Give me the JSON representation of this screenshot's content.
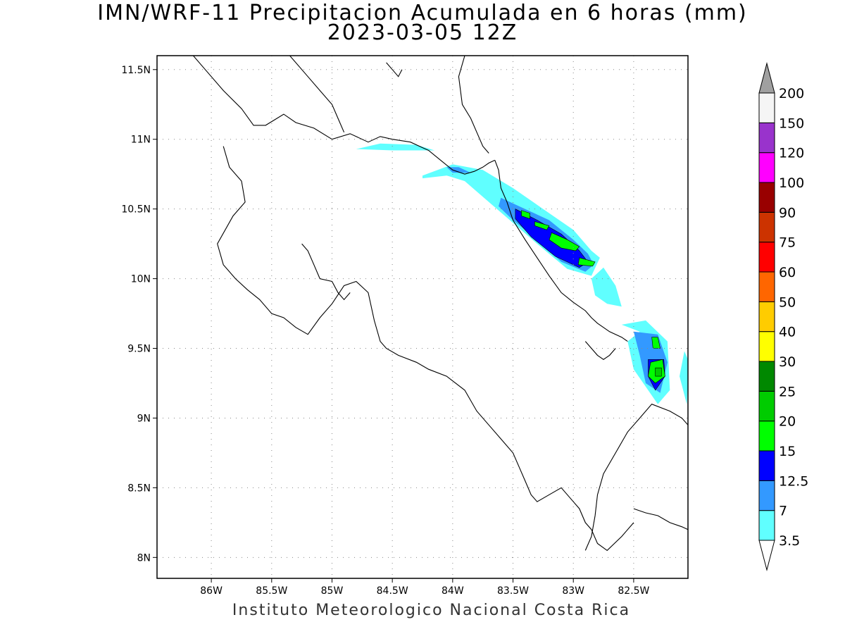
{
  "title_line1": "IMN/WRF-11 Precipitacion Acumulada en 6 horas (mm)",
  "title_line2": "2023-03-05 12Z",
  "footer": "Instituto Meteorologico Nacional Costa Rica",
  "map": {
    "lon_range": [
      -86.45,
      -82.05
    ],
    "lat_range": [
      7.85,
      11.6
    ],
    "lon_ticks": [
      {
        "value": -86,
        "label": "86W"
      },
      {
        "value": -85.5,
        "label": "85.5W"
      },
      {
        "value": -85,
        "label": "85W"
      },
      {
        "value": -84.5,
        "label": "84.5W"
      },
      {
        "value": -84,
        "label": "84W"
      },
      {
        "value": -83.5,
        "label": "83.5W"
      },
      {
        "value": -83,
        "label": "83W"
      },
      {
        "value": -82.5,
        "label": "82.5W"
      }
    ],
    "lat_ticks": [
      {
        "value": 11.5,
        "label": "11.5N"
      },
      {
        "value": 11,
        "label": "11N"
      },
      {
        "value": 10.5,
        "label": "10.5N"
      },
      {
        "value": 10,
        "label": "10N"
      },
      {
        "value": 9.5,
        "label": "9.5N"
      },
      {
        "value": 9,
        "label": "9N"
      },
      {
        "value": 8.5,
        "label": "8.5N"
      },
      {
        "value": 8,
        "label": "8N"
      }
    ],
    "gridlines": "dotted"
  },
  "colorbar": {
    "levels": [
      "3.5",
      "7",
      "12.5",
      "15",
      "20",
      "25",
      "30",
      "40",
      "50",
      "60",
      "75",
      "90",
      "100",
      "120",
      "150",
      "200"
    ],
    "colors": [
      "#60ffff",
      "#3399ff",
      "#0000ff",
      "#00ff00",
      "#00cc00",
      "#008800",
      "#ffff00",
      "#ffcc00",
      "#ff6600",
      "#ff0000",
      "#cc3300",
      "#990000",
      "#ff00ff",
      "#9933cc",
      "#f5f5f5"
    ],
    "below_color": "#ffffff",
    "above_color": "#a0a0a0"
  },
  "precip_bands": [
    {
      "level": "3.5",
      "color": "#60ffff",
      "lon": [
        -84.8,
        -84.6,
        -84.3,
        -84.15,
        -84.5
      ],
      "lat": [
        10.93,
        10.97,
        10.96,
        10.92,
        10.92
      ]
    },
    {
      "level": "3.5",
      "color": "#60ffff",
      "lon": [
        -84.25,
        -84.0,
        -83.75,
        -83.5,
        -83.25,
        -83.0,
        -82.85,
        -82.78,
        -82.85,
        -83.05,
        -83.3,
        -83.5,
        -83.7,
        -83.9,
        -84.05,
        -84.25
      ],
      "lat": [
        10.74,
        10.82,
        10.78,
        10.65,
        10.5,
        10.35,
        10.2,
        10.15,
        10.02,
        10.07,
        10.25,
        10.4,
        10.55,
        10.7,
        10.74,
        10.72
      ]
    },
    {
      "level": "3.5",
      "color": "#60ffff",
      "lon": [
        -82.85,
        -82.75,
        -82.65,
        -82.6,
        -82.72,
        -82.82
      ],
      "lat": [
        10.0,
        10.08,
        9.95,
        9.8,
        9.82,
        9.88
      ]
    },
    {
      "level": "3.5",
      "color": "#60ffff",
      "lon": [
        -82.6,
        -82.4,
        -82.22,
        -82.2,
        -82.3,
        -82.5,
        -82.55,
        -82.45
      ],
      "lat": [
        9.67,
        9.7,
        9.55,
        9.2,
        9.1,
        9.35,
        9.55,
        9.62
      ]
    },
    {
      "level": "3.5",
      "color": "#60ffff",
      "lon": [
        -82.08,
        -82.04,
        -82.06,
        -82.12
      ],
      "lat": [
        9.48,
        9.4,
        9.1,
        9.3
      ]
    },
    {
      "level": "7",
      "color": "#3399ff",
      "lon": [
        -84.05,
        -83.95,
        -83.85,
        -84.0
      ],
      "lat": [
        10.8,
        10.8,
        10.76,
        10.76
      ]
    },
    {
      "level": "7",
      "color": "#3399ff",
      "lon": [
        -83.6,
        -83.45,
        -83.2,
        -83.0,
        -82.88,
        -82.83,
        -82.9,
        -83.1,
        -83.3,
        -83.5,
        -83.62
      ],
      "lat": [
        10.58,
        10.52,
        10.42,
        10.28,
        10.18,
        10.1,
        10.05,
        10.12,
        10.28,
        10.42,
        10.52
      ]
    },
    {
      "level": "7",
      "color": "#3399ff",
      "lon": [
        -82.5,
        -82.3,
        -82.22,
        -82.28,
        -82.4,
        -82.45
      ],
      "lat": [
        9.62,
        9.6,
        9.4,
        9.18,
        9.25,
        9.45
      ]
    },
    {
      "level": "12.5",
      "color": "#0000ff",
      "lon": [
        -83.48,
        -83.3,
        -83.1,
        -82.95,
        -82.88,
        -82.95,
        -83.15,
        -83.35,
        -83.48
      ],
      "lat": [
        10.5,
        10.42,
        10.32,
        10.2,
        10.12,
        10.08,
        10.16,
        10.3,
        10.43
      ]
    },
    {
      "level": "12.5",
      "color": "#0000ff",
      "lon": [
        -82.38,
        -82.25,
        -82.24,
        -82.32,
        -82.38
      ],
      "lat": [
        9.42,
        9.42,
        9.3,
        9.2,
        9.3
      ]
    },
    {
      "level": "15",
      "color": "#00ff00",
      "lon": [
        -83.43,
        -83.36,
        -83.36,
        -83.43
      ],
      "lat": [
        10.49,
        10.47,
        10.43,
        10.45
      ]
    },
    {
      "level": "15",
      "color": "#00ff00",
      "lon": [
        -83.32,
        -83.2,
        -83.22,
        -83.32
      ],
      "lat": [
        10.41,
        10.38,
        10.35,
        10.38
      ]
    },
    {
      "level": "15",
      "color": "#00ff00",
      "lon": [
        -83.18,
        -83.05,
        -82.95,
        -82.98,
        -83.1,
        -83.2
      ],
      "lat": [
        10.33,
        10.28,
        10.23,
        10.2,
        10.22,
        10.28
      ]
    },
    {
      "level": "15",
      "color": "#00ff00",
      "lon": [
        -82.95,
        -82.82,
        -82.84,
        -82.96
      ],
      "lat": [
        10.15,
        10.12,
        10.09,
        10.1
      ]
    },
    {
      "level": "15",
      "color": "#00ff00",
      "lon": [
        -82.35,
        -82.3,
        -82.28,
        -82.34
      ],
      "lat": [
        9.58,
        9.58,
        9.5,
        9.5
      ]
    },
    {
      "level": "15",
      "color": "#00ff00",
      "lon": [
        -82.36,
        -82.26,
        -82.24,
        -82.32,
        -82.38
      ],
      "lat": [
        9.4,
        9.42,
        9.3,
        9.25,
        9.3
      ]
    },
    {
      "level": "20",
      "color": "#00cc00",
      "lon": [
        -82.32,
        -82.27,
        -82.27,
        -82.32
      ],
      "lat": [
        9.36,
        9.36,
        9.3,
        9.3
      ]
    }
  ],
  "coastlines": [
    {
      "lon": [
        -86.15,
        -86.05,
        -85.9,
        -85.75,
        -85.65,
        -85.55,
        -85.4,
        -85.3,
        -85.15,
        -85.0,
        -84.85,
        -84.7,
        -84.6,
        -84.5,
        -84.35,
        -84.25,
        -84.2,
        -84.1,
        -84.0,
        -83.9,
        -83.82,
        -83.75,
        -83.7,
        -83.65
      ],
      "lat": [
        11.6,
        11.5,
        11.35,
        11.22,
        11.1,
        11.1,
        11.18,
        11.12,
        11.08,
        11.0,
        11.04,
        10.98,
        11.02,
        11.0,
        10.98,
        10.94,
        10.92,
        10.85,
        10.78,
        10.75,
        10.77,
        10.8,
        10.83,
        10.85
      ]
    },
    {
      "lon": [
        -83.65,
        -83.62,
        -83.6,
        -83.55,
        -83.5,
        -83.4,
        -83.3,
        -83.2,
        -83.1,
        -83.0,
        -82.9,
        -82.85,
        -82.8,
        -82.75,
        -82.7,
        -82.6,
        -82.55
      ],
      "lat": [
        10.85,
        10.78,
        10.65,
        10.55,
        10.42,
        10.28,
        10.15,
        10.02,
        9.9,
        9.83,
        9.77,
        9.72,
        9.68,
        9.65,
        9.62,
        9.58,
        9.55
      ]
    },
    {
      "lon": [
        -85.35,
        -85.2,
        -85.1,
        -85.0,
        -84.95,
        -84.9
      ],
      "lat": [
        11.6,
        11.45,
        11.35,
        11.25,
        11.15,
        11.05
      ]
    },
    {
      "lon": [
        -83.9,
        -83.95,
        -83.92,
        -83.85,
        -83.8,
        -83.75,
        -83.7
      ],
      "lat": [
        11.6,
        11.45,
        11.25,
        11.15,
        11.05,
        10.95,
        10.9
      ]
    },
    {
      "lon": [
        -85.9,
        -85.85,
        -85.75,
        -85.72,
        -85.82,
        -85.95,
        -85.9,
        -85.8,
        -85.7,
        -85.6,
        -85.5,
        -85.4,
        -85.3,
        -85.2,
        -85.1,
        -85.0,
        -84.9,
        -84.8,
        -84.7,
        -84.65,
        -84.6,
        -84.55,
        -84.45,
        -84.3,
        -84.2,
        -84.05,
        -83.9,
        -83.8,
        -83.7,
        -83.6,
        -83.5,
        -83.45,
        -83.4,
        -83.35,
        -83.3,
        -83.2,
        -83.1,
        -83.0
      ],
      "lat": [
        10.95,
        10.8,
        10.7,
        10.55,
        10.45,
        10.25,
        10.1,
        10.0,
        9.92,
        9.85,
        9.75,
        9.72,
        9.65,
        9.6,
        9.72,
        9.82,
        9.95,
        9.98,
        9.9,
        9.7,
        9.55,
        9.5,
        9.45,
        9.4,
        9.35,
        9.3,
        9.2,
        9.05,
        8.95,
        8.85,
        8.75,
        8.65,
        8.55,
        8.45,
        8.4,
        8.45,
        8.5,
        8.4
      ]
    },
    {
      "lon": [
        -85.25,
        -85.2,
        -85.15,
        -85.1,
        -85.0,
        -84.95,
        -84.9,
        -84.85
      ],
      "lat": [
        10.25,
        10.2,
        10.1,
        10.0,
        9.98,
        9.9,
        9.85,
        9.9
      ]
    },
    {
      "lon": [
        -83.0,
        -82.95,
        -82.9,
        -82.85,
        -82.8,
        -82.72,
        -82.6,
        -82.5
      ],
      "lat": [
        8.4,
        8.35,
        8.25,
        8.2,
        8.1,
        8.05,
        8.15,
        8.25
      ]
    },
    {
      "lon": [
        -82.9,
        -82.85,
        -82.82,
        -82.8,
        -82.75,
        -82.65,
        -82.55,
        -82.45,
        -82.35,
        -82.2,
        -82.1,
        -82.05
      ],
      "lat": [
        8.05,
        8.15,
        8.3,
        8.45,
        8.6,
        8.75,
        8.9,
        9.0,
        9.1,
        9.05,
        9.0,
        8.95
      ]
    },
    {
      "lon": [
        -82.9,
        -82.85,
        -82.8,
        -82.75,
        -82.7,
        -82.65
      ],
      "lat": [
        9.55,
        9.5,
        9.45,
        9.42,
        9.45,
        9.5
      ]
    },
    {
      "lon": [
        -82.5,
        -82.4,
        -82.3,
        -82.2,
        -82.1,
        -82.05
      ],
      "lat": [
        8.35,
        8.32,
        8.3,
        8.25,
        8.22,
        8.2
      ]
    },
    {
      "lon": [
        -84.55,
        -84.5,
        -84.45,
        -84.42
      ],
      "lat": [
        11.55,
        11.5,
        11.45,
        11.5
      ]
    }
  ]
}
